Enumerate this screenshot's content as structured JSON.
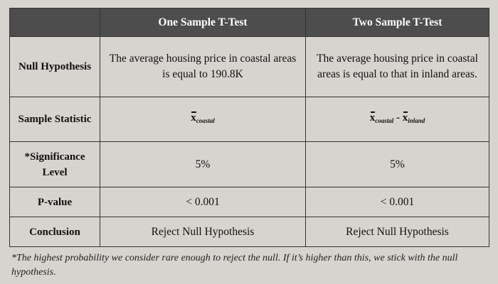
{
  "table": {
    "headers": [
      "",
      "One Sample T-Test",
      "Two Sample T-Test"
    ],
    "rows": [
      {
        "label": "Null Hypothesis",
        "one_sample": "The average housing price in coastal areas is equal to 190.8K",
        "two_sample": "The average housing price in coastal areas is equal to that in inland areas."
      },
      {
        "label": "Sample Statistic",
        "one_sample": {
          "symbol": "x",
          "sub": "coastal"
        },
        "two_sample": {
          "symbol_a": "x",
          "sub_a": "coastal",
          "operator": "-",
          "symbol_b": "x",
          "sub_b": "inland"
        }
      },
      {
        "label": "*Significance Level",
        "one_sample": "5%",
        "two_sample": "5%"
      },
      {
        "label": "P-value",
        "one_sample": "< 0.001",
        "two_sample": "< 0.001"
      },
      {
        "label": "Conclusion",
        "one_sample": "Reject Null Hypothesis",
        "two_sample": "Reject Null Hypothesis"
      }
    ]
  },
  "footnote": "*The highest probability we consider rare enough to reject the null. If it’s higher than this, we stick with the null hypothesis.",
  "colors": {
    "background": "#d7d3ce",
    "header_fill": "#4d4d4d",
    "border": "#333333"
  }
}
